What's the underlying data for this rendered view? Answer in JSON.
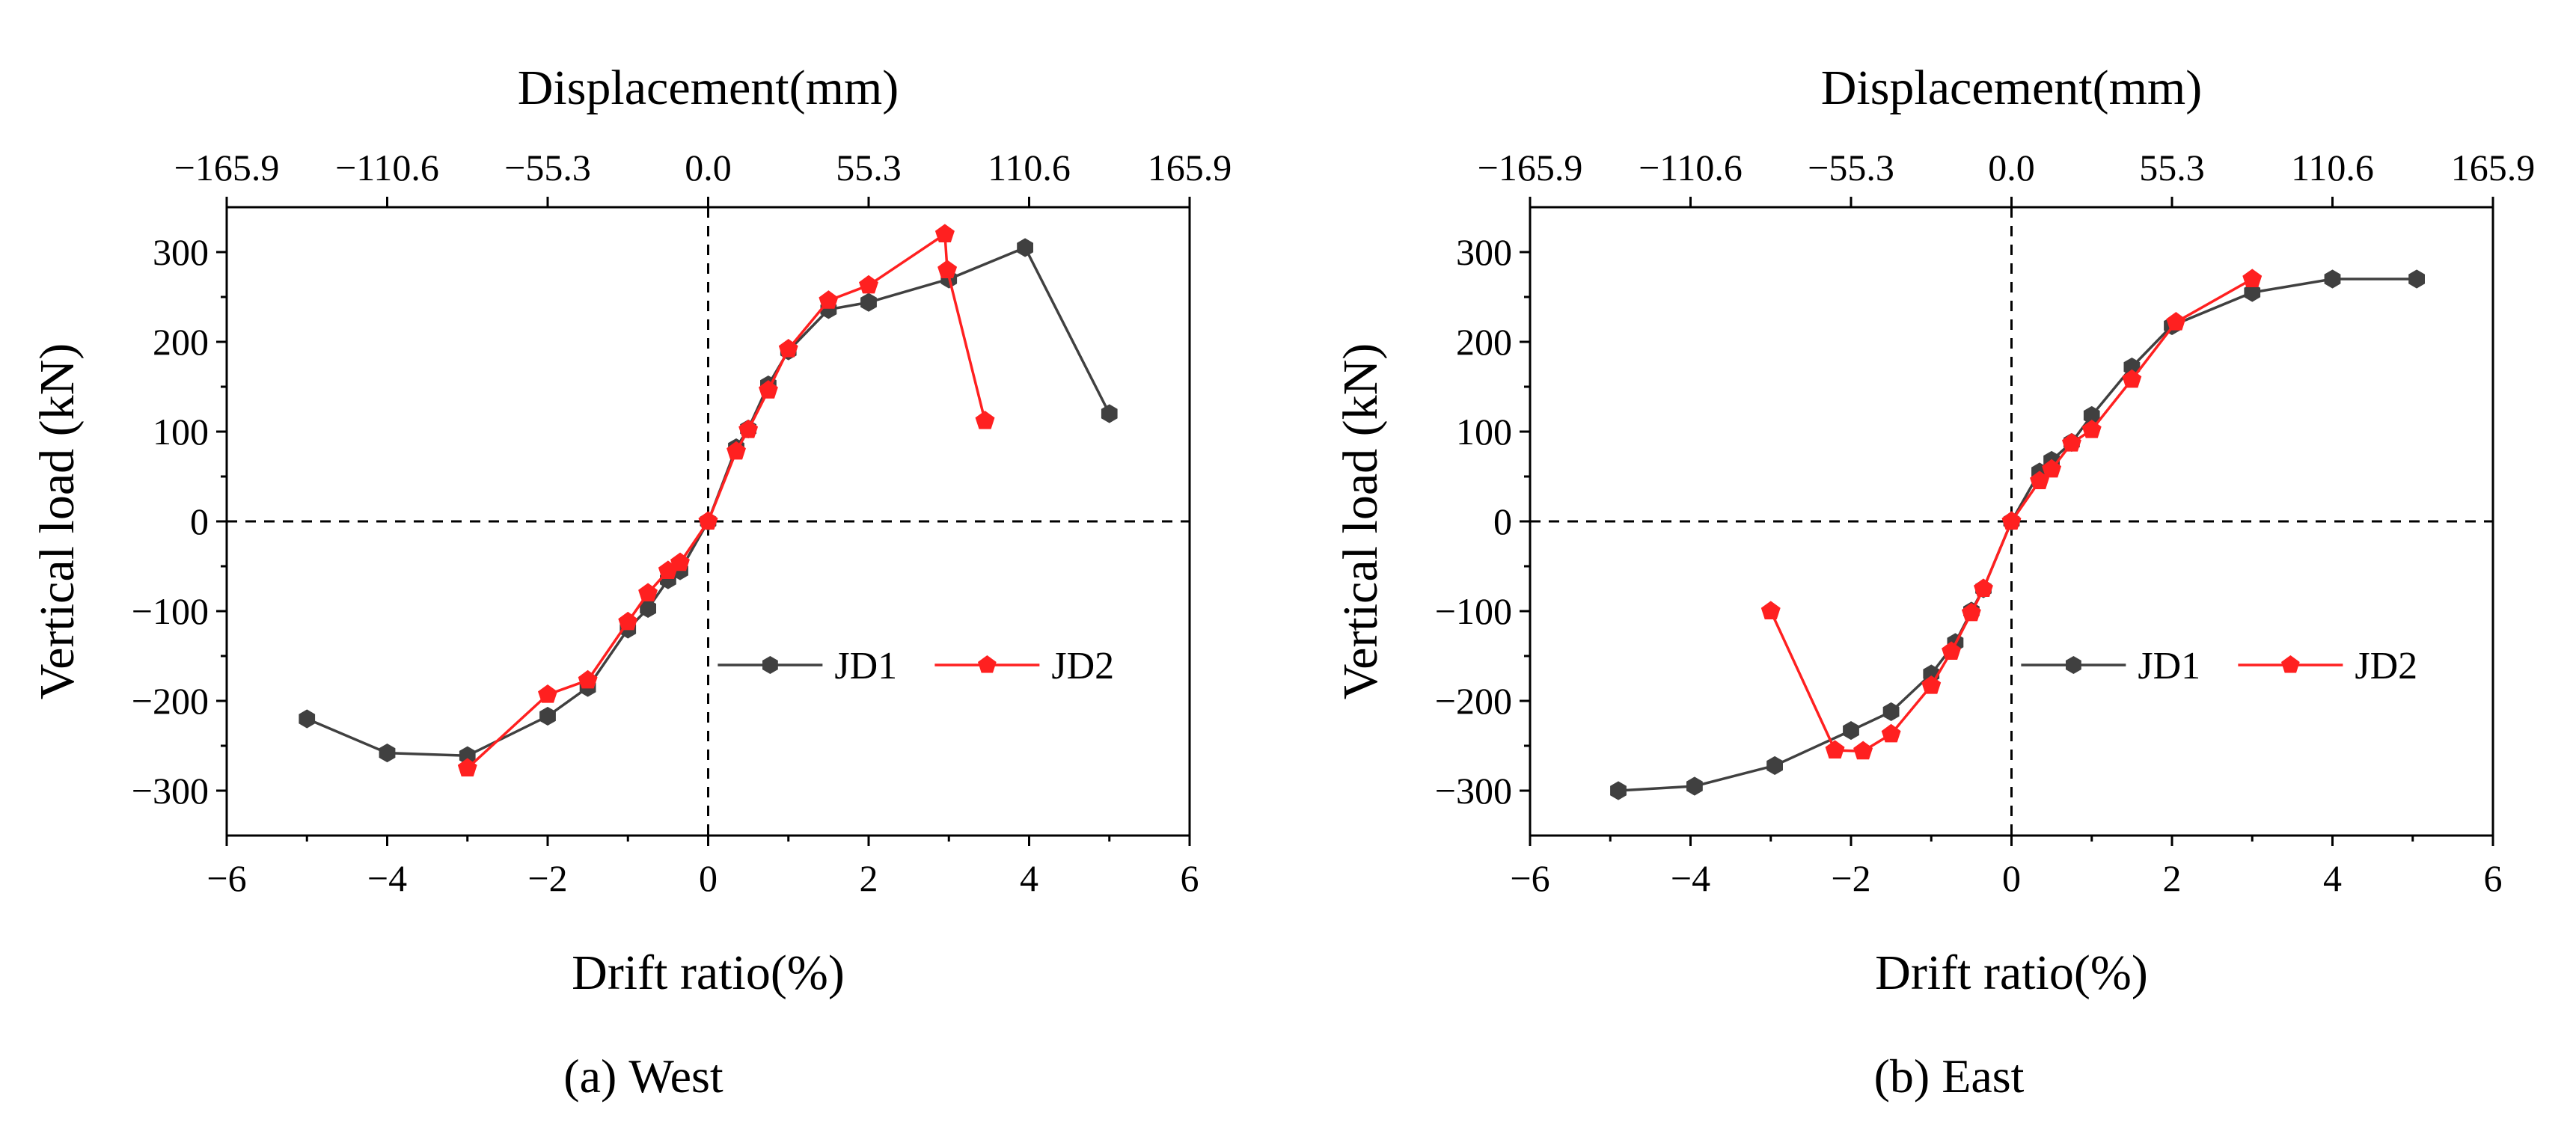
{
  "figure": {
    "colors": {
      "JD1": "#404040",
      "JD2": "#ff2020",
      "axis": "#000000"
    }
  },
  "chart_data": [
    {
      "type": "line",
      "panel_id": "a",
      "caption": {
        "letter": "(a)",
        "text": "West"
      },
      "xlabel": "Drift ratio(%)",
      "ylabel": "Vertical load (kN)",
      "top_xlabel": "Displacement(mm)",
      "xlim": [
        -6,
        6
      ],
      "ylim": [
        -350,
        350
      ],
      "x_ticks": [
        -6,
        -4,
        -2,
        0,
        2,
        4,
        6
      ],
      "x_tick_labels": [
        "−6",
        "−4",
        "−2",
        "0",
        "2",
        "4",
        "6"
      ],
      "y_ticks": [
        -300,
        -200,
        -100,
        0,
        100,
        200,
        300
      ],
      "y_tick_labels": [
        "−300",
        "−200",
        "−100",
        "0",
        "100",
        "200",
        "300"
      ],
      "top_ticks": [
        -165.9,
        -110.6,
        -55.3,
        0.0,
        55.3,
        110.6,
        165.9
      ],
      "top_tick_labels": [
        "−165.9",
        "−110.6",
        "−55.3",
        "0.0",
        "55.3",
        "110.6",
        "165.9"
      ],
      "top_ticks_drift": [
        -6,
        -4,
        -2,
        0,
        2,
        4,
        6
      ],
      "legend_position": "center-right",
      "series": [
        {
          "name": "JD1",
          "x": [
            -5.0,
            -4.0,
            -3.0,
            -2.0,
            -1.5,
            -1.0,
            -0.75,
            -0.5,
            -0.35,
            0.0,
            0.35,
            0.5,
            0.75,
            1.0,
            1.5,
            2.0,
            3.0,
            3.95,
            5.0
          ],
          "y": [
            -220,
            -258,
            -261,
            -217,
            -185,
            -120,
            -97,
            -65,
            -55,
            0,
            82,
            103,
            152,
            190,
            236,
            244,
            270,
            305,
            120
          ]
        },
        {
          "name": "JD2",
          "x": [
            -3.0,
            -2.0,
            -1.5,
            -1.0,
            -0.75,
            -0.5,
            -0.35,
            0.0,
            0.35,
            0.5,
            0.75,
            1.0,
            1.5,
            2.0,
            2.95,
            2.98,
            3.45
          ],
          "y": [
            -275,
            -193,
            -177,
            -112,
            -80,
            -55,
            -46,
            0,
            78,
            102,
            146,
            192,
            246,
            263,
            320,
            280,
            112
          ]
        }
      ]
    },
    {
      "type": "line",
      "panel_id": "b",
      "caption": {
        "letter": "(b)",
        "text": "East"
      },
      "xlabel": "Drift ratio(%)",
      "ylabel": "Vertical load (kN)",
      "top_xlabel": "Displacement(mm)",
      "xlim": [
        -6,
        6
      ],
      "ylim": [
        -350,
        350
      ],
      "x_ticks": [
        -6,
        -4,
        -2,
        0,
        2,
        4,
        6
      ],
      "x_tick_labels": [
        "−6",
        "−4",
        "−2",
        "0",
        "2",
        "4",
        "6"
      ],
      "y_ticks": [
        -300,
        -200,
        -100,
        0,
        100,
        200,
        300
      ],
      "y_tick_labels": [
        "−300",
        "−200",
        "−100",
        "0",
        "100",
        "200",
        "300"
      ],
      "top_ticks": [
        -165.9,
        -110.6,
        -55.3,
        0.0,
        55.3,
        110.6,
        165.9
      ],
      "top_tick_labels": [
        "−165.9",
        "−110.6",
        "−55.3",
        "0.0",
        "55.3",
        "110.6",
        "165.9"
      ],
      "top_ticks_drift": [
        -6,
        -4,
        -2,
        0,
        2,
        4,
        6
      ],
      "legend_position": "center-right",
      "series": [
        {
          "name": "JD1",
          "x": [
            -4.9,
            -3.95,
            -2.95,
            -2.0,
            -1.5,
            -1.0,
            -0.7,
            -0.5,
            -0.35,
            0.0,
            0.35,
            0.5,
            0.75,
            1.0,
            1.5,
            2.0,
            3.0,
            4.0,
            5.05
          ],
          "y": [
            -300,
            -295,
            -272,
            -233,
            -212,
            -170,
            -135,
            -100,
            -75,
            0,
            55,
            68,
            88,
            118,
            172,
            218,
            255,
            270,
            270
          ]
        },
        {
          "name": "JD2",
          "x": [
            -3.0,
            -2.2,
            -1.85,
            -1.5,
            -1.0,
            -0.75,
            -0.5,
            -0.35,
            0.0,
            0.35,
            0.5,
            0.75,
            1.0,
            1.5,
            2.05,
            3.0
          ],
          "y": [
            -100,
            -255,
            -256,
            -237,
            -183,
            -145,
            -102,
            -75,
            0,
            45,
            58,
            87,
            102,
            158,
            222,
            270
          ]
        }
      ]
    }
  ]
}
